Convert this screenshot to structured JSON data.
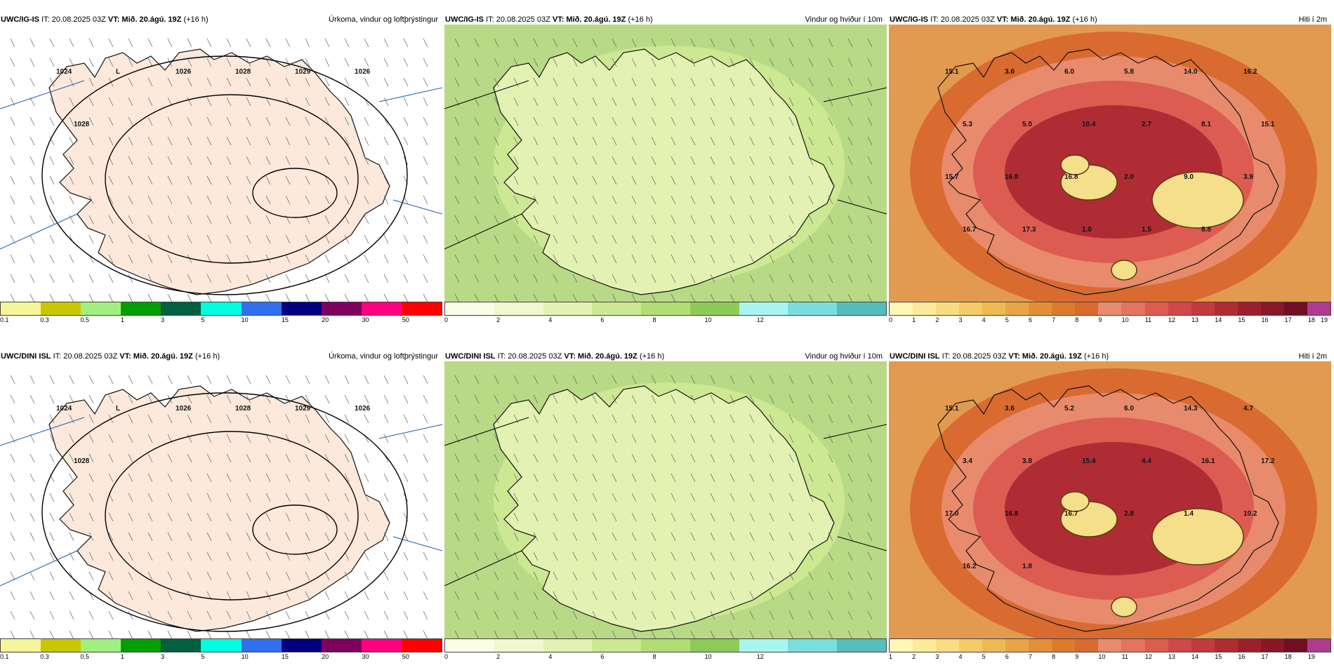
{
  "panels": [
    {
      "model": "UWC/IG-IS",
      "it": "IT: 20.08.2025 03Z",
      "vt_label": "VT:",
      "vt": "Mið. 20.ágú. 19Z",
      "lead": "(+16 h)",
      "right_title": "Úrkoma, vindur og loftþrýstingur",
      "type": "precip",
      "colorbar_colors": [
        "#f5f59a",
        "#c8c800",
        "#a0f080",
        "#00a000",
        "#006040",
        "#00ffe0",
        "#3070f0",
        "#000080",
        "#800060",
        "#ff0080",
        "#ff0000"
      ],
      "colorbar_labels": [
        "0.1",
        "0.3",
        "0.5",
        "1",
        "3",
        "5",
        "10",
        "15",
        "20",
        "30",
        "50"
      ],
      "labels": [
        {
          "text": "1024"
        },
        {
          "text": "L"
        },
        {
          "text": "1026"
        },
        {
          "text": "1028"
        },
        {
          "text": "1029"
        },
        {
          "text": "1026"
        },
        {
          "text": "1028"
        }
      ]
    },
    {
      "model": "UWC/IG-IS",
      "it": "IT: 20.08.2025 03Z",
      "vt_label": "VT:",
      "vt": "Mið. 20.ágú. 19Z",
      "lead": "(+16 h)",
      "right_title": "Vindur og hviður í 10m",
      "type": "wind",
      "colorbar_colors": [
        "#fbfde8",
        "#f1f8cf",
        "#e3f2b3",
        "#cde892",
        "#b2dc74",
        "#8fc95a",
        "#a8f5f0",
        "#7adede",
        "#56bdbd"
      ],
      "colorbar_labels": [
        "0",
        "2",
        "4",
        "6",
        "8",
        "10",
        "12"
      ],
      "labels": []
    },
    {
      "model": "UWC/IG-IS",
      "it": "IT: 20.08.2025 03Z",
      "vt_label": "VT:",
      "vt": "Mið. 20.ágú. 19Z",
      "lead": "(+16 h)",
      "right_title": "Hiti í 2m",
      "type": "temp",
      "colorbar_colors": [
        "#fff6b8",
        "#fbea9c",
        "#f8dc82",
        "#f3cc6a",
        "#eeb955",
        "#e8a545",
        "#e29038",
        "#dc7b2e",
        "#d96b30",
        "#e88a6c",
        "#e47462",
        "#dc5c52",
        "#d04848",
        "#c23a3d",
        "#b02c35",
        "#9c1f2d",
        "#881727",
        "#700f22",
        "#b03a90"
      ],
      "colorbar_labels": [
        "0",
        "1",
        "2",
        "3",
        "4",
        "5",
        "6",
        "7",
        "8",
        "9",
        "10",
        "11",
        "12",
        "13",
        "14",
        "15",
        "16",
        "17",
        "18",
        "19"
      ],
      "labels": [
        {
          "text": "15.1"
        },
        {
          "text": "3.6"
        },
        {
          "text": "6.0"
        },
        {
          "text": "5.8"
        },
        {
          "text": "14.0"
        },
        {
          "text": "16.2"
        },
        {
          "text": "5.3"
        },
        {
          "text": "5.0"
        },
        {
          "text": "10.4"
        },
        {
          "text": "2.7"
        },
        {
          "text": "8.1"
        },
        {
          "text": "15.1"
        },
        {
          "text": "15.7"
        },
        {
          "text": "16.8"
        },
        {
          "text": "16.8"
        },
        {
          "text": "2.0"
        },
        {
          "text": "9.0"
        },
        {
          "text": "3.9"
        },
        {
          "text": "16.7"
        },
        {
          "text": "17.3"
        },
        {
          "text": "1.0"
        },
        {
          "text": "1.5"
        },
        {
          "text": "8.8"
        }
      ]
    },
    {
      "model": "UWC/DINI ISL",
      "it": "IT: 20.08.2025 03Z",
      "vt_label": "VT:",
      "vt": "Mið. 20.ágú. 19Z",
      "lead": "(+16 h)",
      "right_title": "Úrkoma, vindur og loftþrýstingur",
      "type": "precip",
      "colorbar_colors": [
        "#f5f59a",
        "#c8c800",
        "#a0f080",
        "#00a000",
        "#006040",
        "#00ffe0",
        "#3070f0",
        "#000080",
        "#800060",
        "#ff0080",
        "#ff0000"
      ],
      "colorbar_labels": [
        "0.1",
        "0.3",
        "0.5",
        "1",
        "3",
        "5",
        "10",
        "15",
        "20",
        "30",
        "50"
      ],
      "labels": [
        {
          "text": "1024"
        },
        {
          "text": "L"
        },
        {
          "text": "1026"
        },
        {
          "text": "1028"
        },
        {
          "text": "1029"
        },
        {
          "text": "1026"
        },
        {
          "text": "1028"
        }
      ]
    },
    {
      "model": "UWC/DINI ISL",
      "it": "IT: 20.08.2025 03Z",
      "vt_label": "VT:",
      "vt": "Mið. 20.ágú. 19Z",
      "lead": "(+16 h)",
      "right_title": "Vindur og hviður í 10m",
      "type": "wind",
      "colorbar_colors": [
        "#fbfde8",
        "#f1f8cf",
        "#e3f2b3",
        "#cde892",
        "#b2dc74",
        "#8fc95a",
        "#a8f5f0",
        "#7adede",
        "#56bdbd"
      ],
      "colorbar_labels": [
        "0",
        "2",
        "4",
        "6",
        "8",
        "10",
        "12"
      ],
      "labels": []
    },
    {
      "model": "UWC/DINI ISL",
      "it": "IT: 20.08.2025 03Z",
      "vt_label": "VT:",
      "vt": "Mið. 20.ágú. 19Z",
      "lead": "(+16 h)",
      "right_title": "Hiti í 2m",
      "type": "temp",
      "colorbar_colors": [
        "#fff6b8",
        "#fbea9c",
        "#f8dc82",
        "#f3cc6a",
        "#eeb955",
        "#e8a545",
        "#e29038",
        "#dc7b2e",
        "#d96b30",
        "#e88a6c",
        "#e47462",
        "#dc5c52",
        "#d04848",
        "#c23a3d",
        "#b02c35",
        "#9c1f2d",
        "#881727",
        "#700f22",
        "#b03a90"
      ],
      "colorbar_labels": [
        "1",
        "2",
        "3",
        "4",
        "5",
        "6",
        "7",
        "8",
        "9",
        "10",
        "11",
        "12",
        "13",
        "14",
        "15",
        "16",
        "17",
        "18",
        "19"
      ],
      "labels": [
        {
          "text": "15.1"
        },
        {
          "text": "3.6"
        },
        {
          "text": "5.2"
        },
        {
          "text": "6.0"
        },
        {
          "text": "14.3"
        },
        {
          "text": "4.7"
        },
        {
          "text": "3.4"
        },
        {
          "text": "3.8"
        },
        {
          "text": "15.4"
        },
        {
          "text": "4.4"
        },
        {
          "text": "16.1"
        },
        {
          "text": "17.2"
        },
        {
          "text": "17.0"
        },
        {
          "text": "16.8"
        },
        {
          "text": "16.7"
        },
        {
          "text": "2.8"
        },
        {
          "text": "1.4"
        },
        {
          "text": "10.2"
        },
        {
          "text": "16.2"
        },
        {
          "text": "1.8"
        }
      ]
    }
  ]
}
